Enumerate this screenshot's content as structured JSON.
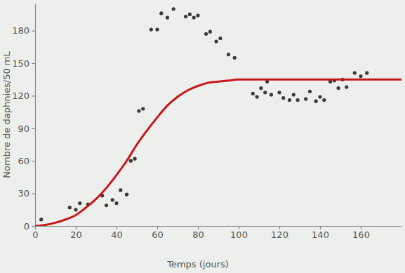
{
  "chart_data": {
    "type": "scatter",
    "x_label": "Temps (jours)",
    "y_label": "Nombre de daphnies/50 mL",
    "xlim": [
      0,
      180
    ],
    "ylim": [
      0,
      205
    ],
    "xticks": [
      0,
      20,
      40,
      60,
      80,
      100,
      120,
      140,
      160
    ],
    "yticks": [
      0,
      30,
      60,
      90,
      120,
      150,
      180
    ],
    "grid": false,
    "series": [
      {
        "type": "scatter",
        "color": "#3a3a3a",
        "marker": "circle",
        "x": [
          3,
          17,
          20,
          22,
          26,
          33,
          35,
          38,
          40,
          42,
          45,
          47,
          49,
          51,
          53,
          57,
          60,
          62,
          65,
          68,
          74,
          76,
          78,
          80,
          84,
          86,
          89,
          91,
          95,
          98,
          107,
          109,
          111,
          113,
          114,
          116,
          120,
          122,
          125,
          127,
          129,
          133,
          135,
          138,
          140,
          142,
          145,
          147,
          149,
          151,
          153,
          157,
          160,
          163
        ],
        "values": [
          6,
          17,
          15,
          21,
          20,
          28,
          19,
          24,
          21,
          33,
          29,
          60,
          62,
          106,
          108,
          181,
          181,
          196,
          192,
          200,
          193,
          195,
          192,
          194,
          177,
          179,
          170,
          173,
          158,
          155,
          122,
          119,
          127,
          123,
          133,
          121,
          123,
          118,
          116,
          121,
          116,
          117,
          124,
          115,
          119,
          116,
          133,
          134,
          127,
          135,
          128,
          141,
          138,
          141
        ]
      },
      {
        "type": "line",
        "color": "#c8161d",
        "line_style": "solid",
        "x": [
          0,
          5,
          10,
          15,
          20,
          25,
          30,
          35,
          40,
          45,
          50,
          55,
          60,
          65,
          70,
          75,
          80,
          85,
          90,
          95,
          100,
          120,
          140,
          160,
          180
        ],
        "values": [
          0,
          1,
          3,
          6,
          10,
          17,
          25,
          35,
          47,
          60,
          75,
          88,
          100,
          111,
          119,
          125,
          129,
          132,
          133,
          134,
          135,
          135,
          135,
          135,
          135
        ]
      }
    ]
  }
}
